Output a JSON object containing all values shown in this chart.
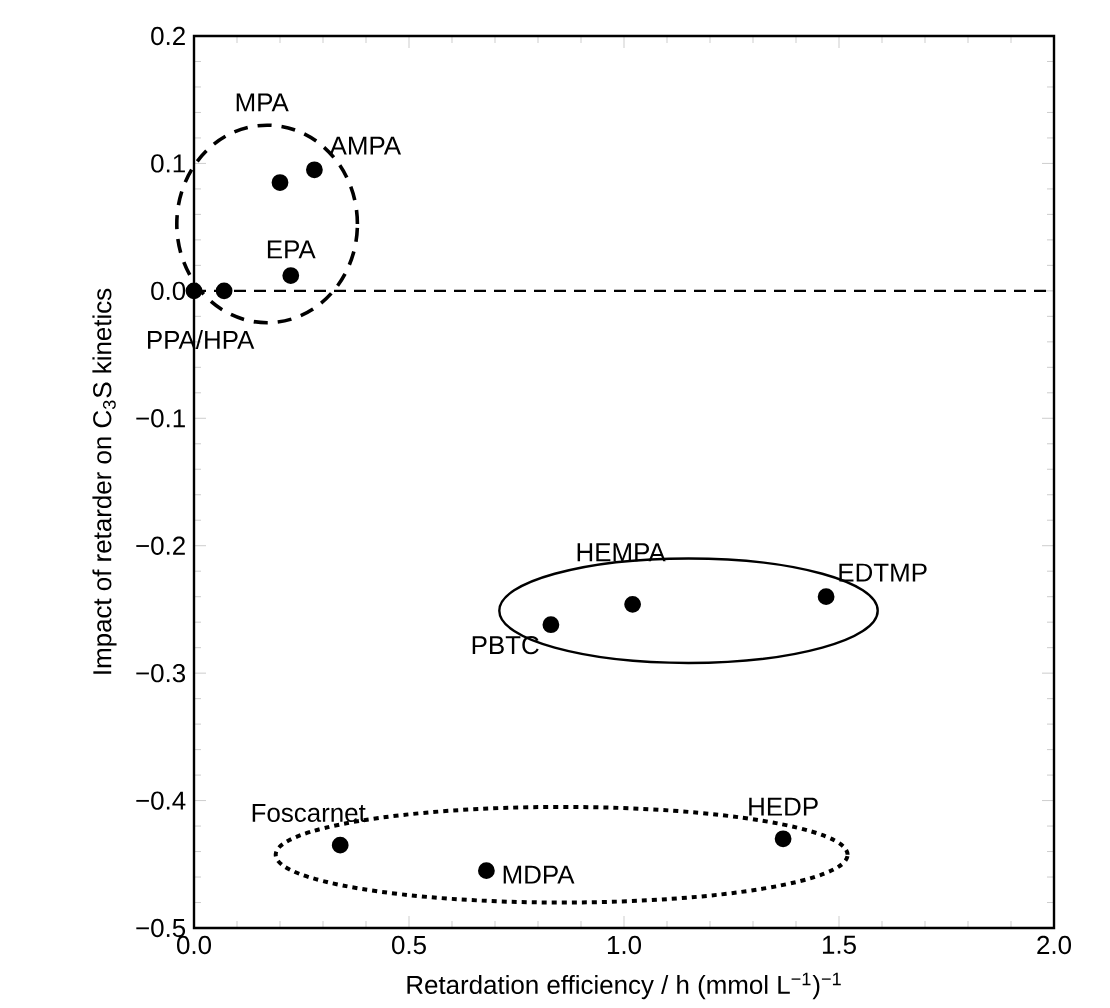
{
  "chart_data": {
    "type": "scatter",
    "xlabel": "Retardation efficiency / h (mmol L$^{−1}$)$^{−1}$",
    "ylabel": "Impact of retarder on C$_{3}$S kinetics",
    "xlim": [
      0,
      2
    ],
    "ylim": [
      -0.5,
      0.2
    ],
    "xticks": [
      {
        "value": 0,
        "label": "0.0"
      },
      {
        "value": 0.5,
        "label": "0.5"
      },
      {
        "value": 1,
        "label": "1.0"
      },
      {
        "value": 1.5,
        "label": "1.5"
      },
      {
        "value": 2,
        "label": "2.0"
      }
    ],
    "yticks": [
      {
        "value": -0.5,
        "label": "−0.5"
      },
      {
        "value": -0.4,
        "label": "−0.4"
      },
      {
        "value": -0.3,
        "label": "−0.3"
      },
      {
        "value": -0.2,
        "label": "−0.2"
      },
      {
        "value": -0.1,
        "label": "−0.1"
      },
      {
        "value": 0,
        "label": "0.0"
      },
      {
        "value": 0.1,
        "label": "0.1"
      },
      {
        "value": 0.2,
        "label": "0.2"
      }
    ],
    "marker": "circle",
    "grid": false,
    "series": [
      {
        "color": "#000000",
        "x": [
          0,
          0.07,
          0.225,
          0.2,
          0.28
        ],
        "values": [
          0,
          0,
          0.012,
          0.085,
          0.095
        ]
      },
      {
        "color": "#000000",
        "x": [
          0.83,
          1.02,
          1.47
        ],
        "values": [
          -0.262,
          -0.246,
          -0.24
        ]
      },
      {
        "color": "#000000",
        "x": [
          0.34,
          0.68,
          1.37
        ],
        "values": [
          -0.435,
          -0.455,
          -0.43
        ]
      }
    ],
    "ref_lines": [
      {
        "axis": "y",
        "value": 0,
        "line_style": "dashed",
        "color": "#000000"
      }
    ],
    "annotations": [
      {
        "text": "PPA/HPA",
        "x": 0.07,
        "y": 0
      },
      {
        "text": "EPA",
        "x": 0.225,
        "y": 0.012
      },
      {
        "text": "MPA",
        "x": 0.2,
        "y": 0.085
      },
      {
        "text": "AMPA",
        "x": 0.28,
        "y": 0.095
      },
      {
        "text": "PBTC",
        "x": 0.83,
        "y": -0.262
      },
      {
        "text": "HEMPA",
        "x": 1.02,
        "y": -0.246
      },
      {
        "text": "EDTMP",
        "x": 1.47,
        "y": -0.24
      },
      {
        "text": "Foscarnet",
        "x": 0.34,
        "y": -0.435
      },
      {
        "text": "MDPA",
        "x": 0.68,
        "y": -0.455
      },
      {
        "text": "HEDP",
        "x": 1.37,
        "y": -0.43
      }
    ]
  }
}
